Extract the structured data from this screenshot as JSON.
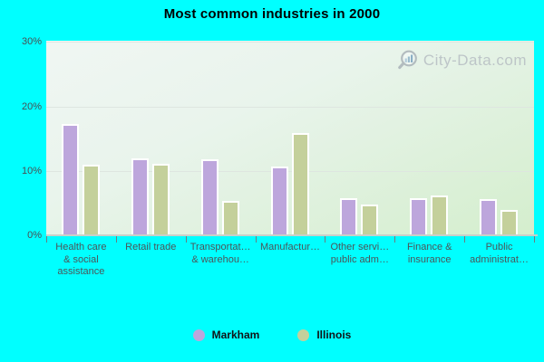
{
  "title": "Most common industries in 2000",
  "watermark": {
    "text": "City-Data.com"
  },
  "colors": {
    "background": "#00ffff",
    "markham": "#bda6dc",
    "illinois": "#c4d09b",
    "bar_border": "#ffffff",
    "axis_text": "#4c5559",
    "grid": "#dde5df"
  },
  "chart_data": {
    "type": "bar",
    "title": "Most common industries in 2000",
    "categories": [
      "Health care & social assistance",
      "Retail trade",
      "Transportat… & warehou…",
      "Manufactur…",
      "Other servi… public adm…",
      "Finance & insurance",
      "Public administrat…"
    ],
    "category_label_lines": [
      [
        "Health care",
        "& social",
        "assistance"
      ],
      [
        "Retail trade"
      ],
      [
        "Transportat…",
        "& warehou…"
      ],
      [
        "Manufactur…"
      ],
      [
        "Other servi…",
        "public adm…"
      ],
      [
        "Finance &",
        "insurance"
      ],
      [
        "Public",
        "administrat…"
      ]
    ],
    "series": [
      {
        "name": "Markham",
        "color": "#bda6dc",
        "values": [
          17.3,
          12.0,
          11.8,
          10.7,
          5.7,
          5.8,
          5.6
        ]
      },
      {
        "name": "Illinois",
        "color": "#c4d09b",
        "values": [
          10.9,
          11.1,
          5.3,
          15.9,
          4.8,
          6.2,
          3.9
        ]
      }
    ],
    "xlabel": "",
    "ylabel": "",
    "y_ticks": [
      {
        "value": 0,
        "label": "0%"
      },
      {
        "value": 10,
        "label": "10%"
      },
      {
        "value": 20,
        "label": "20%"
      },
      {
        "value": 30,
        "label": "30%"
      }
    ],
    "ylim": [
      0,
      30.2
    ],
    "grid": "horizontal",
    "legend_position": "bottom"
  },
  "legend": {
    "items": [
      {
        "label": "Markham",
        "color": "#bda6dc"
      },
      {
        "label": "Illinois",
        "color": "#c4d09b"
      }
    ]
  }
}
